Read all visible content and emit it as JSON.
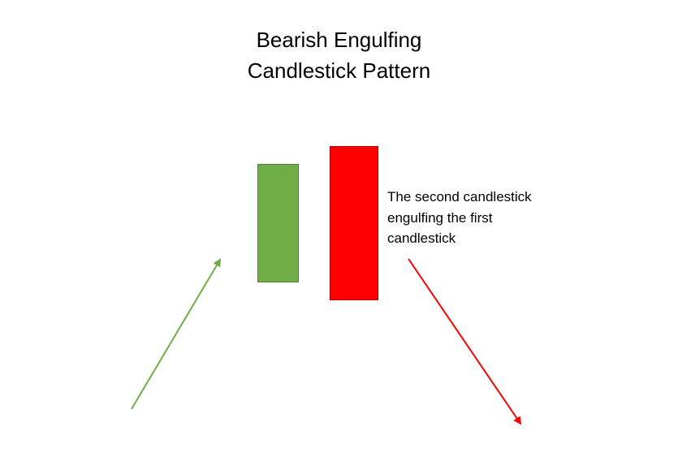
{
  "title": {
    "line1": "Bearish Engulfing",
    "line2": "Candlestick Pattern"
  },
  "caption": {
    "line1": "The second candlestick",
    "line2": "engulfing the first",
    "line3": "candlestick"
  },
  "colors": {
    "bullish": "#70ad47",
    "bearish": "#ff0000",
    "uptrend_arrow": "#70ad47",
    "downtrend_arrow": "#ff0000"
  }
}
